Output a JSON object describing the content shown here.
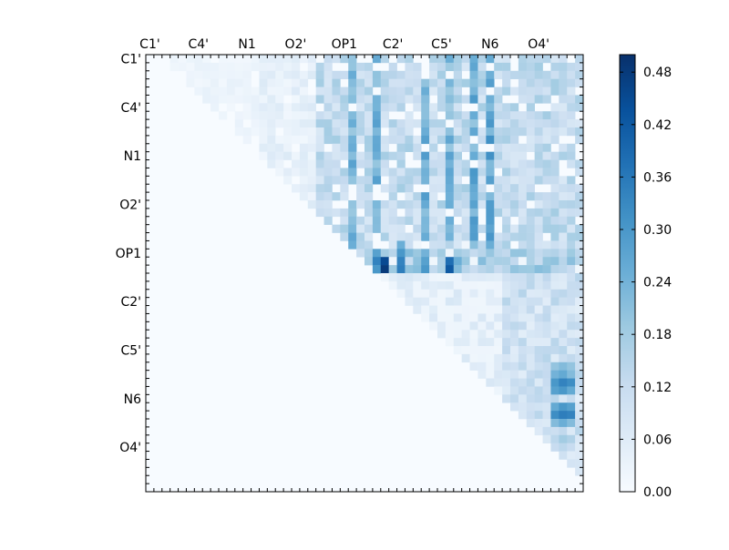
{
  "chart_data": {
    "type": "heatmap",
    "title": "",
    "xlabel": "",
    "ylabel": "",
    "n": 54,
    "x_tick_labels": [
      "C1'",
      "C4'",
      "N1",
      "O2'",
      "OP1",
      "C2'",
      "C5'",
      "N6",
      "O4'"
    ],
    "y_tick_labels": [
      "C1'",
      "C4'",
      "N1",
      "O2'",
      "OP1",
      "C2'",
      "C5'",
      "N6",
      "O4'"
    ],
    "label_rows": [
      0,
      6,
      12,
      18,
      24,
      30,
      36,
      42,
      48
    ],
    "colorscale": {
      "name": "Blues",
      "vmin": 0.0,
      "vmax": 0.5,
      "ticks": [
        "0.00",
        "0.06",
        "0.12",
        "0.18",
        "0.24",
        "0.30",
        "0.36",
        "0.42",
        "0.48"
      ],
      "stops": [
        "#f7fbff",
        "#deebf7",
        "#c6dbef",
        "#9ecae1",
        "#6baed6",
        "#4292c6",
        "#2171b5",
        "#08519c",
        "#08306b"
      ]
    },
    "strong_columns": {
      "25": 0.1,
      "28": 0.12,
      "34": 0.12,
      "37": 0.1,
      "40": 0.12,
      "42": 0.14
    },
    "highlight_rows": {
      "23": [
        0.0,
        0.0,
        0.25,
        0.0,
        0.15,
        0.08
      ],
      "24": [
        0.28,
        0.18,
        0.3,
        0.24,
        0.22,
        0.18
      ],
      "25": [
        0.34,
        0.45,
        0.34,
        0.28,
        0.38,
        0.25
      ],
      "26": [
        0.3,
        0.48,
        0.35,
        0.3,
        0.42,
        0.22
      ]
    },
    "right_block_values": {
      "38": [
        0.2,
        0.22,
        0.2
      ],
      "39": [
        0.24,
        0.26,
        0.22
      ],
      "40": [
        0.3,
        0.34,
        0.32
      ],
      "41": [
        0.28,
        0.3,
        0.26
      ],
      "43": [
        0.26,
        0.3,
        0.28
      ],
      "44": [
        0.32,
        0.35,
        0.34
      ],
      "45": [
        0.22,
        0.25,
        0.22
      ],
      "47": [
        0.14,
        0.18,
        0.16
      ],
      "48": [
        0.12,
        0.14,
        0.12
      ]
    }
  }
}
